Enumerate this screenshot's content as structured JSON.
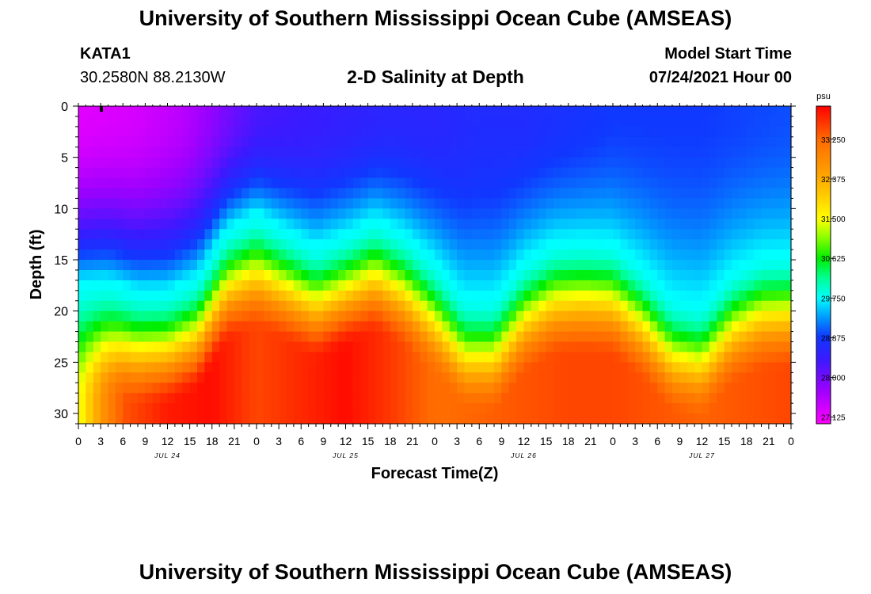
{
  "header": {
    "main_title": "University of Southern Mississippi Ocean Cube (AMSEAS)",
    "station": "KATA1",
    "coordinates": "30.2580N  88.2130W",
    "chart_title": "2-D Salinity at Depth",
    "model_start_label": "Model Start Time",
    "model_start_value": "07/24/2021 Hour 00"
  },
  "footer": {
    "main_title": "University of Southern Mississippi Ocean Cube (AMSEAS)"
  },
  "chart_data": {
    "type": "heatmap",
    "title": "2-D Salinity at Depth",
    "xlabel": "Forecast Time(Z)",
    "ylabel": "Depth (ft)",
    "x_range_hours": [
      0,
      96
    ],
    "y_range_ft": [
      0,
      31
    ],
    "x_tick_labels": [
      "0",
      "3",
      "6",
      "9",
      "12",
      "15",
      "18",
      "21",
      "0",
      "3",
      "6",
      "9",
      "12",
      "15",
      "18",
      "21",
      "0",
      "3",
      "6",
      "9",
      "12",
      "15",
      "18",
      "21",
      "0",
      "3",
      "6",
      "9",
      "12",
      "15",
      "18",
      "21",
      "0"
    ],
    "date_labels": [
      {
        "text": "JUL 24",
        "hour": 12
      },
      {
        "text": "JUL 25",
        "hour": 36
      },
      {
        "text": "JUL 26",
        "hour": 60
      },
      {
        "text": "JUL 27",
        "hour": 84
      }
    ],
    "y_ticks": [
      0,
      5,
      10,
      15,
      20,
      25,
      30
    ],
    "colorbar": {
      "unit": "psu",
      "min": 26.98,
      "max": 33.98,
      "tick_values": [
        27.125,
        28.0,
        28.875,
        29.75,
        30.625,
        31.5,
        32.375,
        33.25
      ],
      "tick_labels": [
        "27.125",
        "28.000",
        "28.875",
        "29.750",
        "30.625",
        "31.500",
        "32.375",
        "33.250"
      ],
      "stops": [
        {
          "value": 26.98,
          "color": "#ff00ff"
        },
        {
          "value": 27.7,
          "color": "#a000ff"
        },
        {
          "value": 28.4,
          "color": "#3a1aff"
        },
        {
          "value": 28.9,
          "color": "#1038ff"
        },
        {
          "value": 29.35,
          "color": "#00a0ff"
        },
        {
          "value": 29.75,
          "color": "#00ffff"
        },
        {
          "value": 30.2,
          "color": "#00ff90"
        },
        {
          "value": 30.625,
          "color": "#00ee00"
        },
        {
          "value": 31.1,
          "color": "#90ff00"
        },
        {
          "value": 31.5,
          "color": "#ffff00"
        },
        {
          "value": 32.0,
          "color": "#ffcc00"
        },
        {
          "value": 32.6,
          "color": "#ff9900"
        },
        {
          "value": 33.25,
          "color": "#ff6a00"
        },
        {
          "value": 33.98,
          "color": "#ff0000"
        }
      ]
    },
    "surface_salinity_by_hour": {
      "hours": [
        0,
        8,
        14,
        18,
        20,
        24,
        30,
        36,
        42,
        48,
        54,
        60,
        66,
        72,
        78,
        84,
        90,
        96
      ],
      "values": [
        27.2,
        27.3,
        27.5,
        27.8,
        28.0,
        28.3,
        28.4,
        28.5,
        28.6,
        28.6,
        28.7,
        28.7,
        28.8,
        28.9,
        28.9,
        28.9,
        28.95,
        29.0
      ]
    },
    "isohaline_29_75_depth_ft": {
      "hours": [
        0,
        4,
        8,
        12,
        16,
        20,
        24,
        28,
        32,
        36,
        40,
        44,
        48,
        52,
        56,
        60,
        64,
        68,
        72,
        76,
        80,
        84,
        88,
        92,
        96
      ],
      "values": [
        17.2,
        17.0,
        18.0,
        18.0,
        16.6,
        12.0,
        10.4,
        12.0,
        13.6,
        12.4,
        10.9,
        12.4,
        15.0,
        18.5,
        18.6,
        15.0,
        13.2,
        13.0,
        13.2,
        15.5,
        18.6,
        19.2,
        16.0,
        14.5,
        14.4
      ]
    },
    "deep_salinity_by_hour": {
      "hours": [
        0,
        3,
        6,
        12,
        18,
        24,
        30,
        36,
        42,
        48,
        54,
        60,
        66,
        72,
        78,
        84,
        90,
        96
      ],
      "values": [
        31.4,
        32.6,
        33.4,
        33.8,
        33.9,
        33.5,
        33.7,
        33.9,
        33.6,
        33.2,
        33.3,
        33.4,
        33.5,
        33.5,
        33.4,
        33.3,
        33.4,
        33.5
      ]
    }
  }
}
